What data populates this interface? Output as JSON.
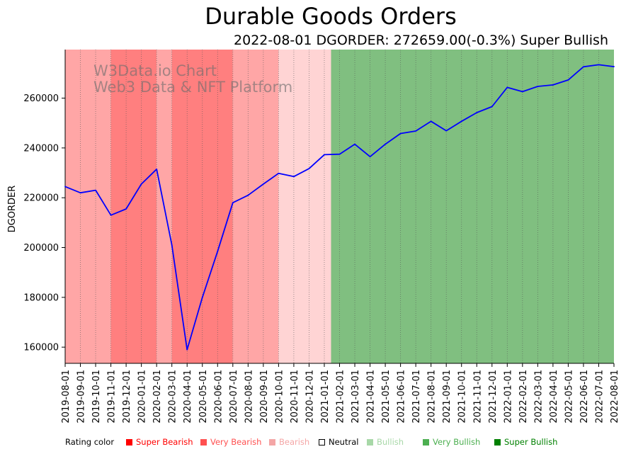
{
  "title": "Durable Goods Orders",
  "subtitle": "2022-08-01 DGORDER: 272659.00(-0.3%) Super Bullish",
  "watermark": {
    "line1": "W3Data.io Chart",
    "line2": "Web3 Data & NFT Platform"
  },
  "legend": {
    "label": "Rating color",
    "items": [
      {
        "name": "Super Bearish",
        "color": "#ff0000"
      },
      {
        "name": "Very Bearish",
        "color": "#ff5050"
      },
      {
        "name": "Bearish",
        "color": "#f4a6a6"
      },
      {
        "name": "Neutral",
        "color": "#ffffff"
      },
      {
        "name": "Bullish",
        "color": "#a8d8a8"
      },
      {
        "name": "Very Bullish",
        "color": "#4caf50"
      },
      {
        "name": "Super Bullish",
        "color": "#008000"
      }
    ]
  },
  "colors": {
    "line": "#0000ff",
    "band_bearish": "#ffa6a6",
    "band_very_bearish": "#ff7f7f",
    "band_light_bearish": "#ffd4d4",
    "band_super_bullish": "#80bf80"
  },
  "chart_data": {
    "type": "line",
    "ylabel": "DGORDER",
    "xlabel": "",
    "ylim": [
      153500,
      279500
    ],
    "yticks": [
      160000,
      180000,
      200000,
      220000,
      240000,
      260000
    ],
    "x": [
      "2019-08-01",
      "2019-09-01",
      "2019-10-01",
      "2019-11-01",
      "2019-12-01",
      "2020-01-01",
      "2020-02-01",
      "2020-03-01",
      "2020-04-01",
      "2020-05-01",
      "2020-06-01",
      "2020-07-01",
      "2020-08-01",
      "2020-09-01",
      "2020-10-01",
      "2020-11-01",
      "2020-12-01",
      "2021-01-01",
      "2021-02-01",
      "2021-03-01",
      "2021-04-01",
      "2021-05-01",
      "2021-06-01",
      "2021-07-01",
      "2021-08-01",
      "2021-09-01",
      "2021-10-01",
      "2021-11-01",
      "2021-12-01",
      "2022-01-01",
      "2022-02-01",
      "2022-03-01",
      "2022-04-01",
      "2022-05-01",
      "2022-06-01",
      "2022-07-01",
      "2022-08-01"
    ],
    "series": [
      {
        "values": [
          224500,
          222000,
          223000,
          213000,
          215500,
          225500,
          231500,
          201000,
          159000,
          180000,
          198500,
          218000,
          221000,
          225500,
          229800,
          228500,
          231700,
          237300,
          237500,
          241500,
          236500,
          241500,
          245800,
          246800,
          250700,
          246900,
          250700,
          254200,
          256600,
          264300,
          262600,
          264700,
          265300,
          267300,
          272600,
          273400,
          272659
        ]
      }
    ],
    "rating_bands": [
      {
        "start": "2019-08-01",
        "end": "2019-11-01",
        "rating": "Bearish"
      },
      {
        "start": "2019-11-01",
        "end": "2020-02-01",
        "rating": "Very Bearish"
      },
      {
        "start": "2020-02-01",
        "end": "2020-03-01",
        "rating": "Bearish"
      },
      {
        "start": "2020-03-01",
        "end": "2020-07-01",
        "rating": "Very Bearish"
      },
      {
        "start": "2020-07-01",
        "end": "2020-10-01",
        "rating": "Bearish"
      },
      {
        "start": "2020-10-01",
        "end": "2021-02-01",
        "rating": "Light Bearish"
      },
      {
        "start": "2021-02-01",
        "end": "2022-08-01",
        "rating": "Super Bullish"
      }
    ],
    "grid": "vertical-dotted"
  }
}
